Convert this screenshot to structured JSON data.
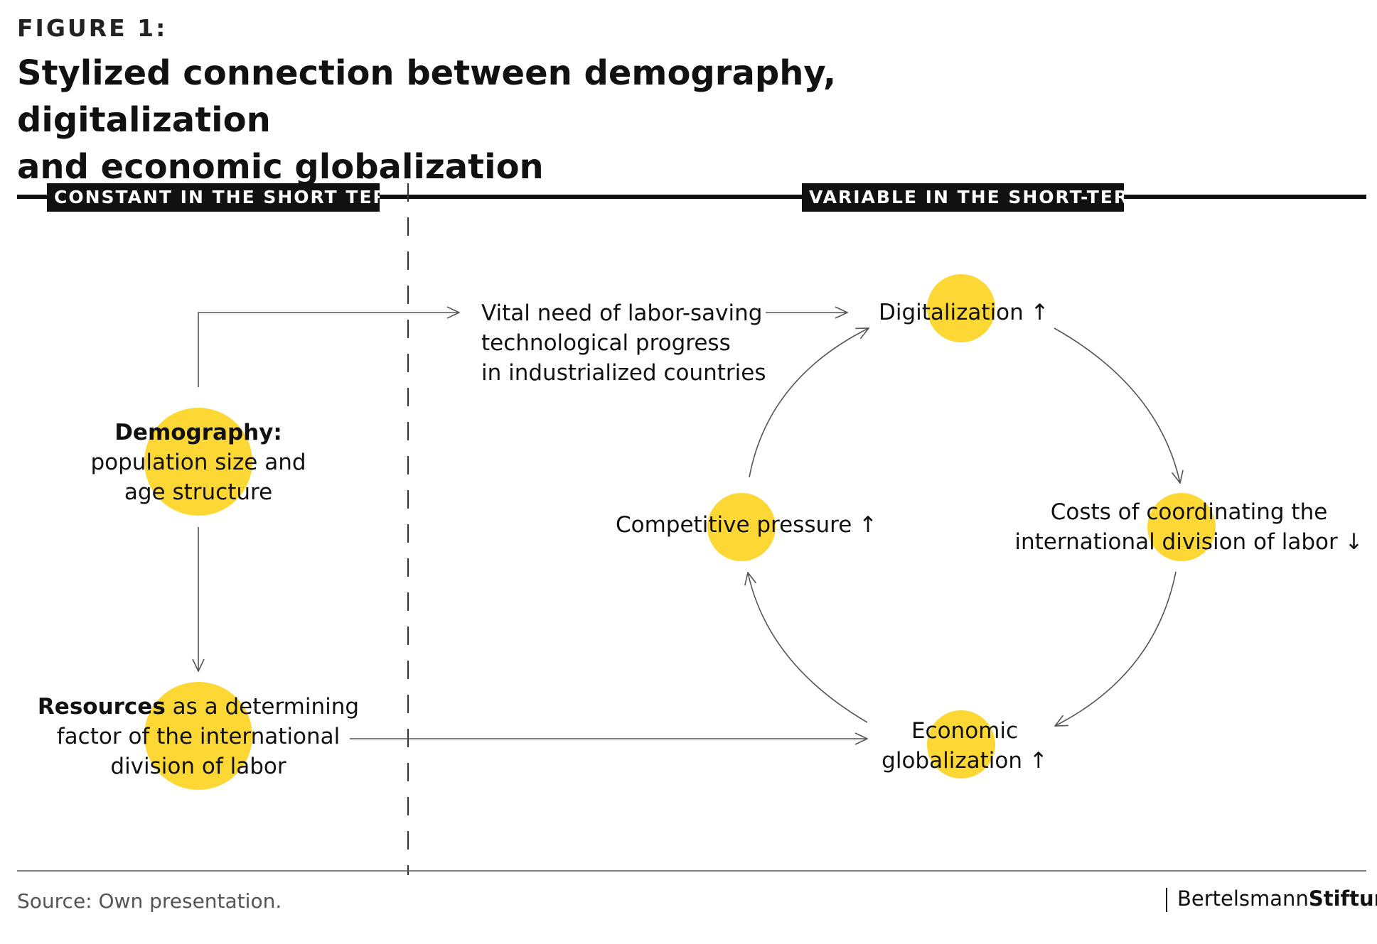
{
  "figure": {
    "label": "FIGURE 1:",
    "title_line1": "Stylized connection between demography, digitalization",
    "title_line2": "and economic globalization"
  },
  "sections": {
    "left": "CONSTANT IN THE SHORT TERM",
    "right": "VARIABLE IN THE SHORT-TERM"
  },
  "nodes": {
    "demography": {
      "bold": "Demography:",
      "line2": "population size and",
      "line3": "age structure"
    },
    "resources": {
      "bold": "Resources",
      "rest1": " as a determining",
      "line2": "factor of the international",
      "line3": "division of labor"
    },
    "vital_need": {
      "line1": "Vital need of labor-saving",
      "line2": "technological progress",
      "line3": "in industrialized countries"
    },
    "digitalization": {
      "text": "Digitalization",
      "arrow": "↑"
    },
    "competitive": {
      "text": "Competitive pressure",
      "arrow": "↑"
    },
    "costs": {
      "line1": "Costs of coordinating the",
      "line2": "international division of labor",
      "arrow": "↓"
    },
    "economic": {
      "line1": "Economic",
      "line2": "globalization",
      "arrow": "↑"
    }
  },
  "colors": {
    "accent": "#fdd835",
    "ink": "#111111",
    "line": "#555555",
    "muted": "#555555"
  },
  "footer": {
    "source": "Source: Own presentation.",
    "brand_regular": "Bertelsmann",
    "brand_bold": "Stiftung"
  }
}
